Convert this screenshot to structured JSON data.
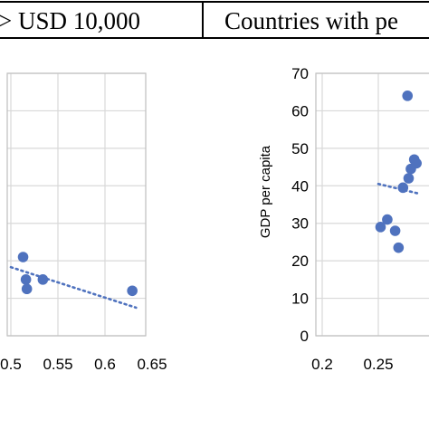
{
  "header": {
    "left_title": "> USD 10,000",
    "right_title": "Countries with pe"
  },
  "chart_data": [
    {
      "type": "scatter",
      "title": "> USD 10,000",
      "xlabel": "",
      "ylabel": "",
      "xlim": [
        0.5,
        0.65
      ],
      "x_ticks": [
        "0.5",
        "0.55",
        "0.6",
        "0.65"
      ],
      "ylim": [
        0,
        70
      ],
      "grid": true,
      "points": [
        {
          "x": 0.513,
          "y": 21
        },
        {
          "x": 0.516,
          "y": 15
        },
        {
          "x": 0.517,
          "y": 12.5
        },
        {
          "x": 0.534,
          "y": 15
        },
        {
          "x": 0.629,
          "y": 12
        }
      ],
      "trendline": {
        "x": [
          0.5,
          0.633
        ],
        "y": [
          18.3,
          7.5
        ]
      }
    },
    {
      "type": "scatter",
      "title": "Countries with pe",
      "xlabel": "",
      "ylabel": "GDP per capita",
      "xlim": [
        0.2,
        0.3
      ],
      "x_ticks": [
        "0.2",
        "0.25"
      ],
      "ylim": [
        0,
        70
      ],
      "y_ticks": [
        "0",
        "10",
        "20",
        "30",
        "40",
        "50",
        "60",
        "70"
      ],
      "grid": true,
      "points": [
        {
          "x": 0.252,
          "y": 29
        },
        {
          "x": 0.258,
          "y": 31
        },
        {
          "x": 0.265,
          "y": 28
        },
        {
          "x": 0.268,
          "y": 23.5
        },
        {
          "x": 0.272,
          "y": 39.5
        },
        {
          "x": 0.276,
          "y": 64
        },
        {
          "x": 0.277,
          "y": 42
        },
        {
          "x": 0.279,
          "y": 44.5
        },
        {
          "x": 0.282,
          "y": 47
        },
        {
          "x": 0.284,
          "y": 46
        }
      ],
      "trendline": {
        "x": [
          0.25,
          0.285
        ],
        "y": [
          40.5,
          38
        ]
      }
    }
  ]
}
